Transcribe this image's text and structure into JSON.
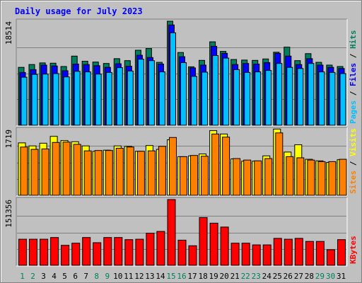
{
  "page": {
    "title": "Daily usage for July 2023"
  },
  "colors": {
    "hits": "#00805c",
    "files": "#0000ff",
    "pages": "#00c0ff",
    "visits": "#ffff00",
    "sites": "#ff8000",
    "kbytes": "#ff0000",
    "weekday": "#000000",
    "weekend": "#00805c",
    "panel_bg": "#c0c0c0"
  },
  "chart_data": [
    {
      "type": "bar",
      "panel": "top",
      "max_label": "18514",
      "side_labels": [
        "Pages",
        "Files",
        "Hits"
      ],
      "side_separator": " / ",
      "categories": [
        "1",
        "2",
        "3",
        "4",
        "5",
        "6",
        "7",
        "8",
        "9",
        "10",
        "11",
        "12",
        "13",
        "14",
        "15",
        "16",
        "17",
        "18",
        "19",
        "20",
        "21",
        "22",
        "23",
        "24",
        "25",
        "26",
        "27",
        "28",
        "29",
        "30",
        "31"
      ],
      "weekend_days": [
        1,
        2,
        8,
        9,
        15,
        16,
        22,
        23,
        29,
        30
      ],
      "ylim": [
        0,
        18514
      ],
      "series": [
        {
          "name": "Hits",
          "color_key": "hits",
          "values": [
            10300,
            10800,
            11100,
            11050,
            10450,
            12300,
            11400,
            11250,
            11000,
            11850,
            11500,
            13350,
            13650,
            11200,
            18514,
            12950,
            10400,
            11550,
            14850,
            13150,
            11700,
            11600,
            11550,
            11800,
            13000,
            13900,
            11500,
            12750,
            11200,
            10700,
            10450
          ]
        },
        {
          "name": "Files",
          "color_key": "files",
          "values": [
            9400,
            9900,
            10700,
            10550,
            9700,
            10900,
            10800,
            10600,
            10300,
            10950,
            10500,
            12450,
            12050,
            10900,
            17850,
            12200,
            10200,
            10700,
            14050,
            12800,
            10800,
            11000,
            10900,
            11150,
            12800,
            12300,
            10800,
            11850,
            10700,
            10300,
            10100
          ]
        },
        {
          "name": "Pages",
          "color_key": "pages",
          "values": [
            8550,
            9050,
            9100,
            9200,
            8600,
            9600,
            9500,
            9100,
            9400,
            10250,
            9650,
            11750,
            11500,
            9500,
            16450,
            11150,
            8700,
            9450,
            12400,
            11950,
            9900,
            9400,
            9500,
            9750,
            11000,
            10300,
            10100,
            11000,
            9500,
            9400,
            9200
          ]
        }
      ]
    },
    {
      "type": "bar",
      "panel": "middle",
      "max_label": "1719",
      "side_labels": [
        "Sites",
        "Visits"
      ],
      "side_separator": " / ",
      "categories": [
        "1",
        "2",
        "3",
        "4",
        "5",
        "6",
        "7",
        "8",
        "9",
        "10",
        "11",
        "12",
        "13",
        "14",
        "15",
        "16",
        "17",
        "18",
        "19",
        "20",
        "21",
        "22",
        "23",
        "24",
        "25",
        "26",
        "27",
        "28",
        "29",
        "30",
        "31"
      ],
      "ylim": [
        0,
        1719
      ],
      "series": [
        {
          "name": "Visits",
          "color_key": "visits",
          "values": [
            1370,
            1290,
            1360,
            1540,
            1430,
            1400,
            1290,
            1150,
            1180,
            1290,
            1280,
            1150,
            1300,
            1200,
            1450,
            1010,
            1030,
            1080,
            1690,
            1600,
            950,
            890,
            890,
            1030,
            1730,
            1130,
            1320,
            940,
            900,
            860,
            930
          ]
        },
        {
          "name": "Sites",
          "color_key": "sites",
          "values": [
            1260,
            1200,
            1210,
            1380,
            1390,
            1330,
            1160,
            1170,
            1170,
            1230,
            1260,
            1150,
            1160,
            1280,
            1510,
            1010,
            1040,
            1020,
            1600,
            1520,
            960,
            920,
            900,
            960,
            1630,
            1010,
            980,
            920,
            880,
            880,
            940
          ]
        }
      ]
    },
    {
      "type": "bar",
      "panel": "bottom",
      "max_label": "151356",
      "side_labels": [
        "KBytes"
      ],
      "categories": [
        "1",
        "2",
        "3",
        "4",
        "5",
        "6",
        "7",
        "8",
        "9",
        "10",
        "11",
        "12",
        "13",
        "14",
        "15",
        "16",
        "17",
        "18",
        "19",
        "20",
        "21",
        "22",
        "23",
        "24",
        "25",
        "26",
        "27",
        "28",
        "29",
        "30",
        "31"
      ],
      "ylim": [
        0,
        151356
      ],
      "series": [
        {
          "name": "KBytes",
          "color_key": "kbytes",
          "values": [
            60000,
            60000,
            60000,
            64000,
            46000,
            51000,
            64000,
            52000,
            64000,
            64000,
            59000,
            60000,
            74000,
            78000,
            151356,
            58000,
            45000,
            110000,
            97000,
            88000,
            51000,
            51000,
            47000,
            47000,
            62000,
            60000,
            62000,
            55000,
            55000,
            36000,
            59000
          ]
        }
      ]
    }
  ]
}
